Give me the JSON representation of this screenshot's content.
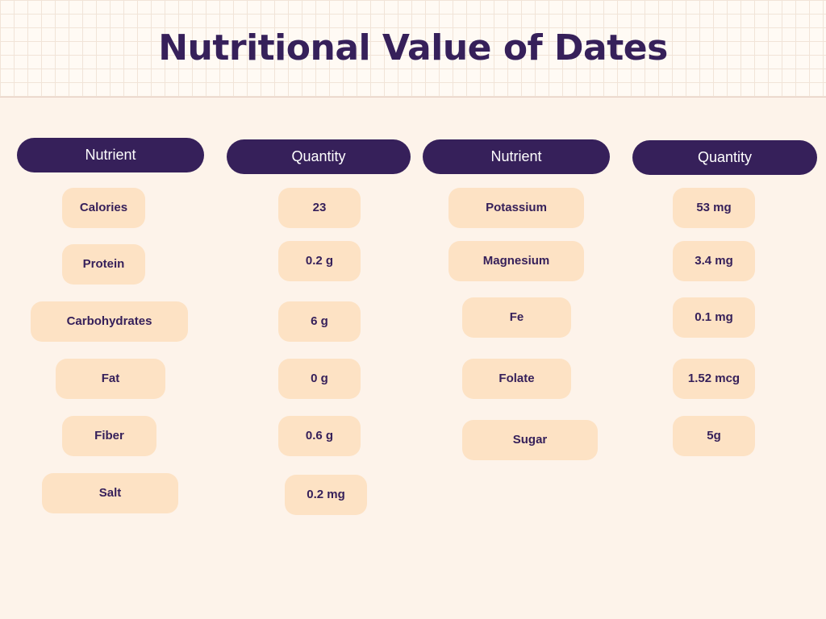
{
  "title": "Nutritional Value of Dates",
  "colors": {
    "dark": "#36205a",
    "pill": "#fde2c4",
    "background": "#fdf3ea"
  },
  "headers": [
    "Nutrient",
    "Quantity",
    "Nutrient",
    "Quantity"
  ],
  "left_table": {
    "nutrients": [
      "Calories",
      "Protein",
      "Carbohydrates",
      "Fat",
      "Fiber",
      "Salt"
    ],
    "quantities": [
      "23",
      "0.2 g",
      "6 g",
      "0 g",
      "0.6 g",
      "0.2 mg"
    ]
  },
  "right_table": {
    "nutrients": [
      "Potassium",
      "Magnesium",
      "Fe",
      "Folate",
      "Sugar"
    ],
    "quantities": [
      "53 mg",
      "3.4 mg",
      "0.1 mg",
      "1.52 mcg",
      "5g"
    ]
  }
}
